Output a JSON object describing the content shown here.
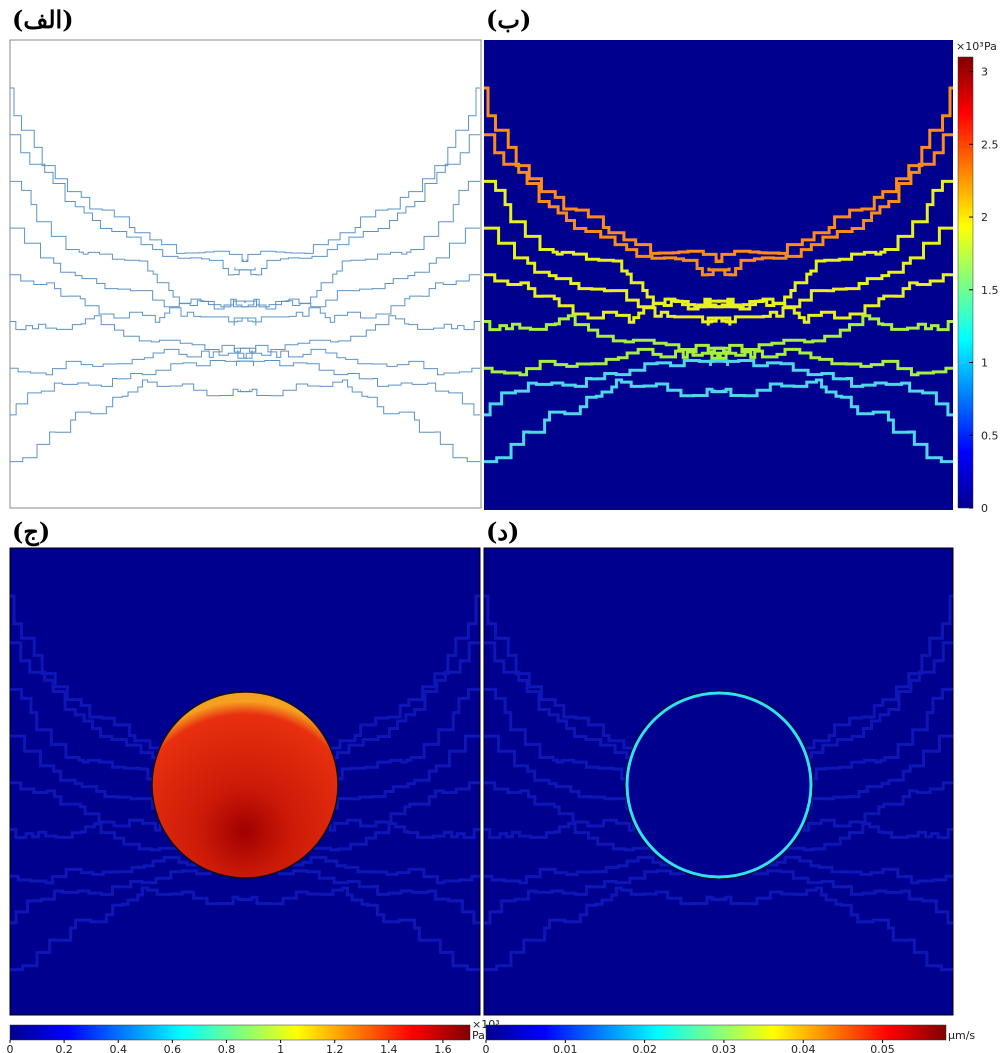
{
  "panels": [
    {
      "label": "(الف)"
    },
    {
      "label": "(ب)",
      "colorbar": {
        "multiplier": "×10³",
        "unit": "Pa",
        "lim": [
          0,
          3.1
        ],
        "ticks": [
          0,
          0.5,
          1,
          1.5,
          2,
          2.5,
          3
        ]
      }
    },
    {
      "label": "(ج)",
      "colorbar": {
        "multiplier": "×10³",
        "unit": "Pa",
        "lim": [
          0,
          1.7
        ],
        "ticks": [
          0,
          0.2,
          0.4,
          0.6,
          0.8,
          1,
          1.2,
          1.4,
          1.6
        ]
      }
    },
    {
      "label": "(د)",
      "colorbar": {
        "unit": "µm/s",
        "lim": [
          0,
          0.058
        ],
        "ticks": [
          0,
          0.01,
          0.02,
          0.03,
          0.04,
          0.05
        ]
      }
    }
  ]
}
